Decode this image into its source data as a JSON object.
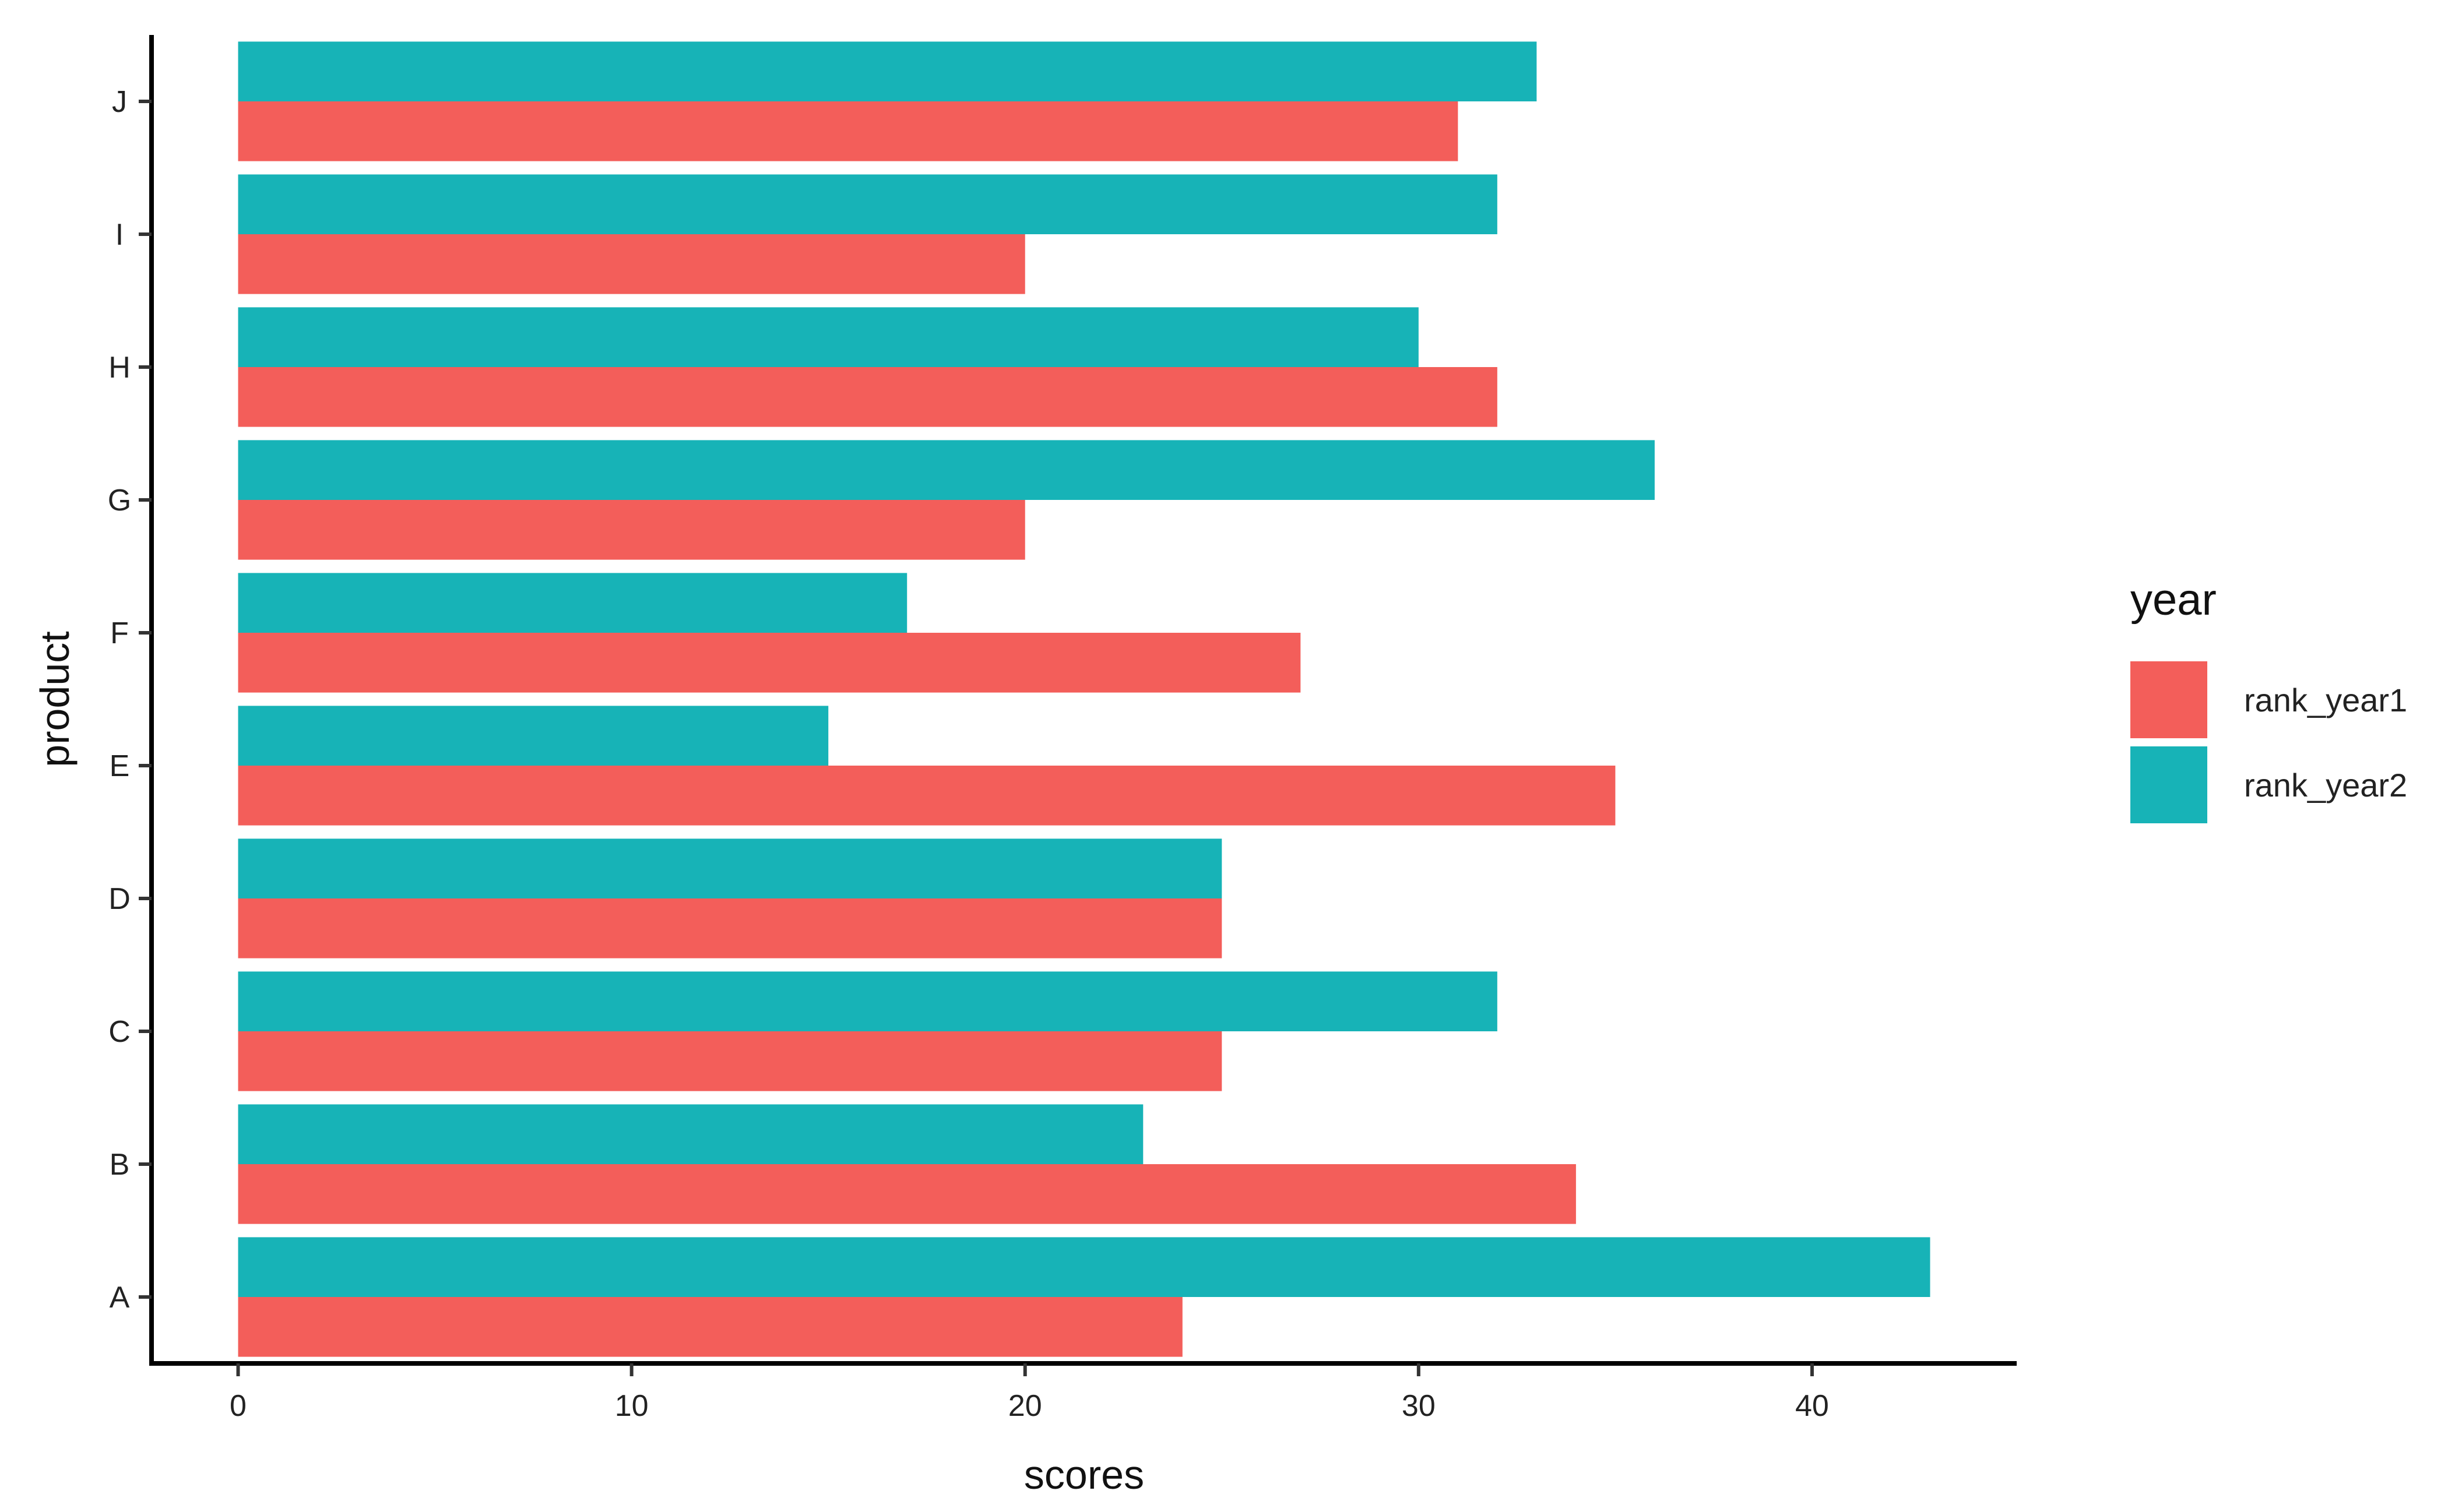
{
  "chart_data": {
    "type": "bar",
    "orientation": "horizontal",
    "xlabel": "scores",
    "ylabel": "product",
    "xlim": [
      -2.2,
      45.2
    ],
    "xticks": [
      0,
      10,
      20,
      30,
      40
    ],
    "categories": [
      "A",
      "B",
      "C",
      "D",
      "E",
      "F",
      "G",
      "H",
      "I",
      "J"
    ],
    "series": [
      {
        "name": "rank_year1",
        "color": "#F35E5A",
        "values": [
          24,
          34,
          25,
          25,
          35,
          27,
          20,
          32,
          20,
          31
        ]
      },
      {
        "name": "rank_year2",
        "color": "#17B3B7",
        "values": [
          43,
          23,
          32,
          25,
          15,
          17,
          36,
          30,
          32,
          33
        ]
      }
    ],
    "legend": {
      "title": "year",
      "position": "right"
    },
    "grid": false
  }
}
